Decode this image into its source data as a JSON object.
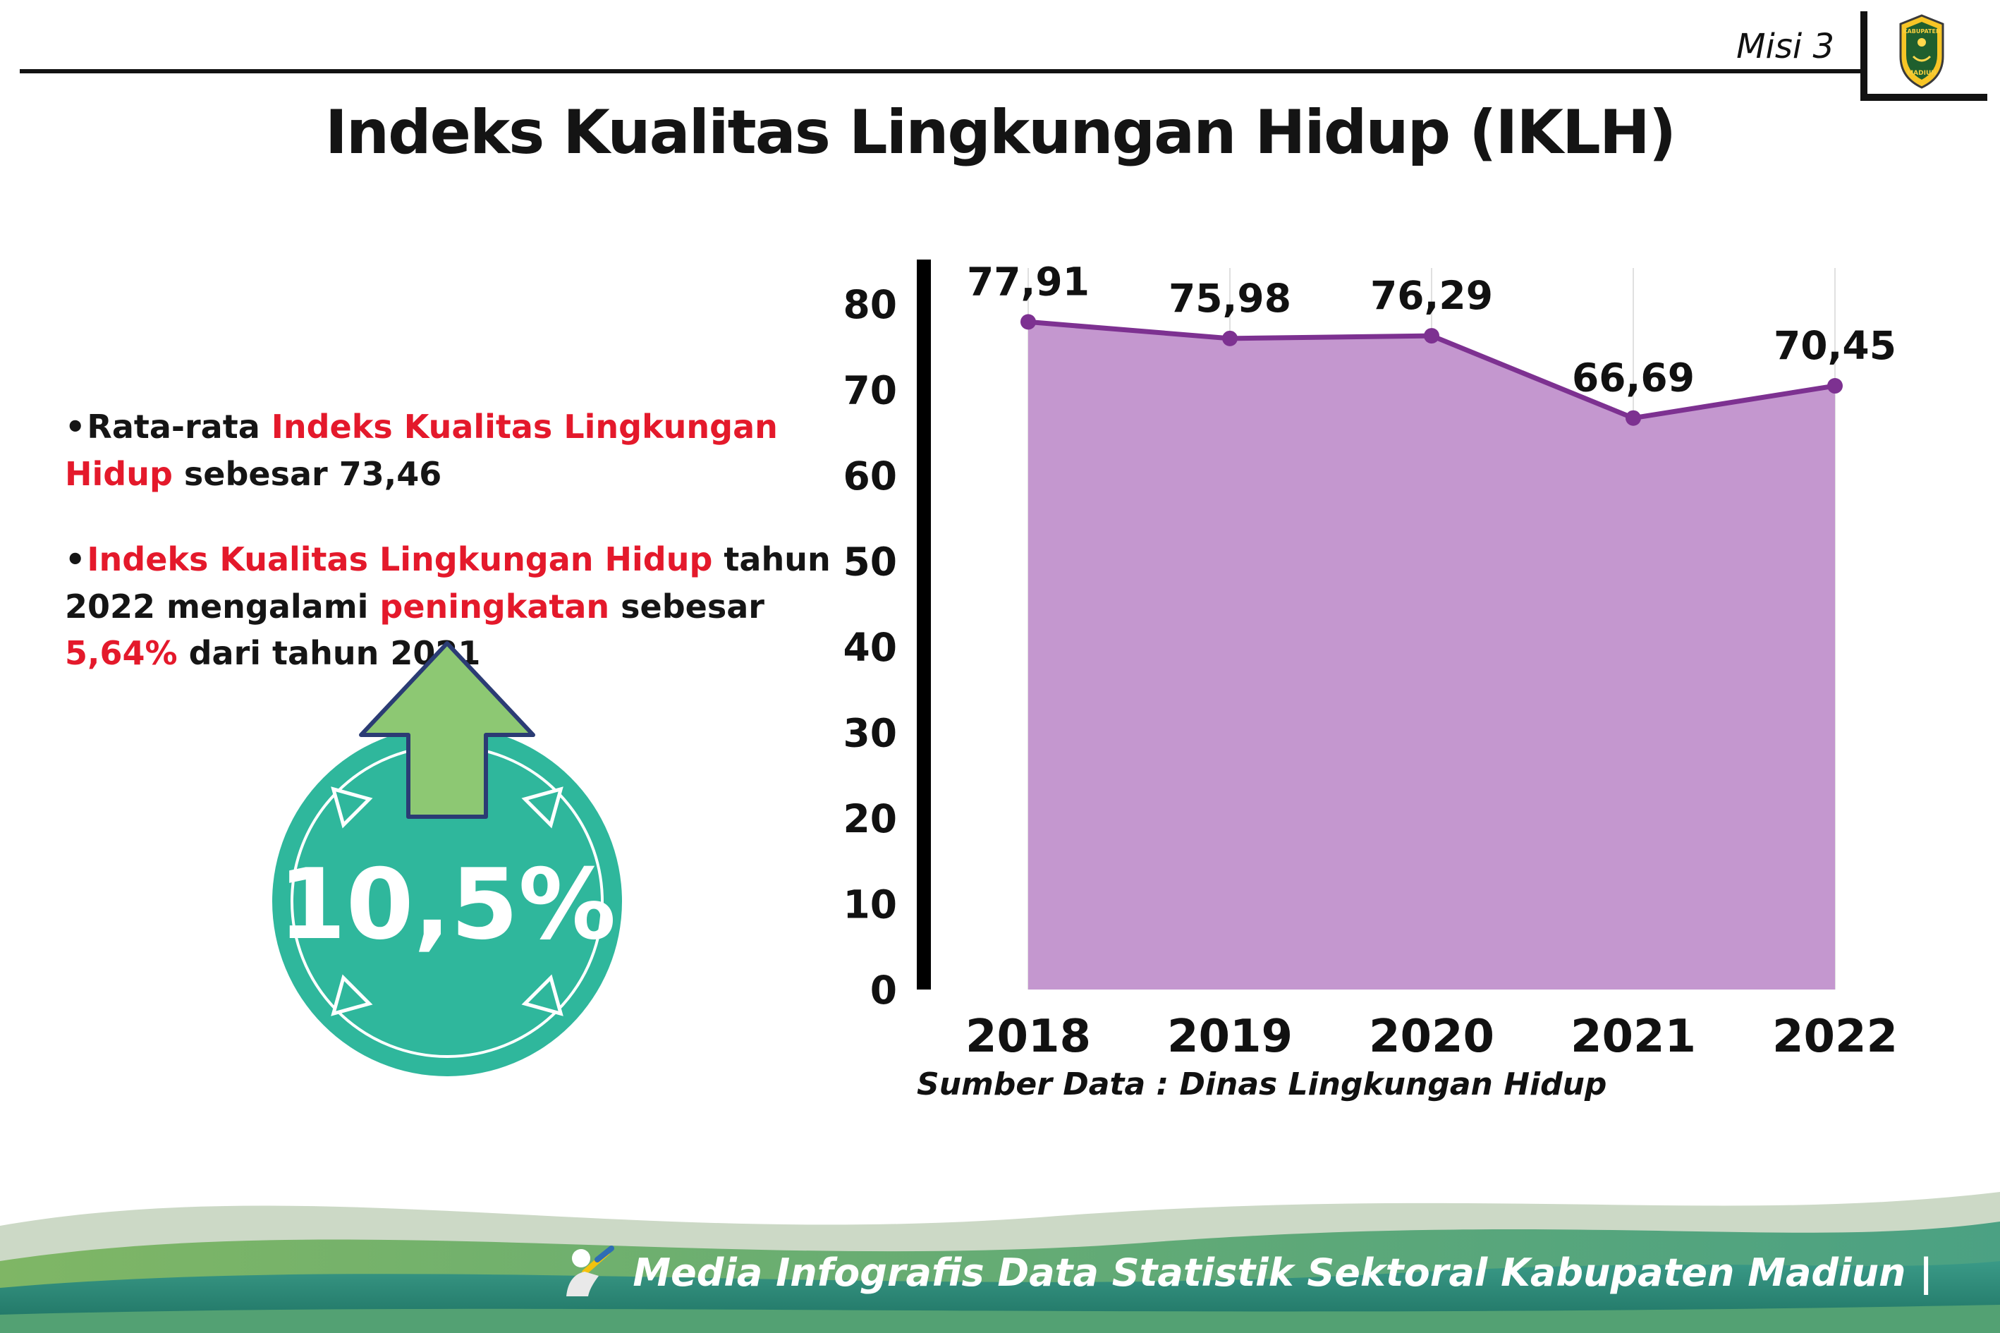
{
  "header": {
    "misi_label": "Misi 3",
    "title": "Indeks Kualitas Lingkungan Hidup (IKLH)"
  },
  "logo": {
    "top": "KABUPATEN",
    "bottom": "MADIUN"
  },
  "bullets": {
    "dot": "•",
    "b1": [
      "Rata-rata ",
      "Indeks Kualitas Lingkungan Hidup",
      " sebesar 73,46"
    ],
    "b2": [
      "Indeks Kualitas Lingkungan Hidup",
      " tahun 2022 mengalami ",
      "peningkatan",
      " sebesar ",
      "5,64%",
      " dari tahun 2021"
    ]
  },
  "badge": {
    "value": "10,5%",
    "circle_color": "#2fb79c",
    "arrow_color": "#8dc873"
  },
  "chart_data": {
    "type": "area",
    "title": "Indeks Kualitas Lingkungan Hidup (IKLH)",
    "categories": [
      "2018",
      "2019",
      "2020",
      "2021",
      "2022"
    ],
    "values": [
      77.91,
      75.98,
      76.29,
      66.69,
      70.45
    ],
    "value_labels": [
      "77,91",
      "75,98",
      "76,29",
      "66,69",
      "70,45"
    ],
    "ylim": [
      0,
      80
    ],
    "yticks": [
      0,
      10,
      20,
      30,
      40,
      50,
      60,
      70,
      80
    ],
    "grid": "vertical-light",
    "legend": "none",
    "area_color": "#c497cf",
    "line_color": "#7d3191",
    "source": "Sumber Data : Dinas Lingkungan Hidup"
  },
  "footer": {
    "text": "Media Infografis Data Statistik Sektoral Kabupaten Madiun |"
  }
}
